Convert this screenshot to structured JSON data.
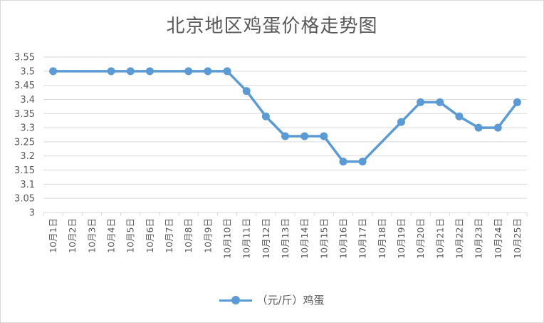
{
  "chart_data": {
    "type": "line",
    "title": "北京地区鸡蛋价格走势图",
    "categories": [
      "10月1日",
      "10月2日",
      "10月3日",
      "10月4日",
      "10月5日",
      "10月6日",
      "10月7日",
      "10月8日",
      "10月9日",
      "10月10日",
      "10月11日",
      "10月12日",
      "10月13日",
      "10月14日",
      "10月15日",
      "10月16日",
      "10月17日",
      "10月18日",
      "10月19日",
      "10月20日",
      "10月21日",
      "10月22日",
      "10月23日",
      "10月24日",
      "10月25日"
    ],
    "series": [
      {
        "name": "（元/斤）鸡蛋",
        "color": "#5b9bd5",
        "values": [
          3.5,
          null,
          null,
          3.5,
          3.5,
          3.5,
          null,
          3.5,
          3.5,
          3.5,
          3.43,
          3.34,
          3.27,
          3.27,
          3.27,
          3.18,
          3.18,
          null,
          3.32,
          3.39,
          3.39,
          3.34,
          3.3,
          3.3,
          3.39
        ]
      }
    ],
    "ylim": [
      3,
      3.55
    ],
    "yticks": [
      "3",
      "3.05",
      "3.1",
      "3.15",
      "3.2",
      "3.25",
      "3.3",
      "3.35",
      "3.4",
      "3.45",
      "3.5",
      "3.55"
    ],
    "grid": true,
    "legend": "bottom"
  }
}
